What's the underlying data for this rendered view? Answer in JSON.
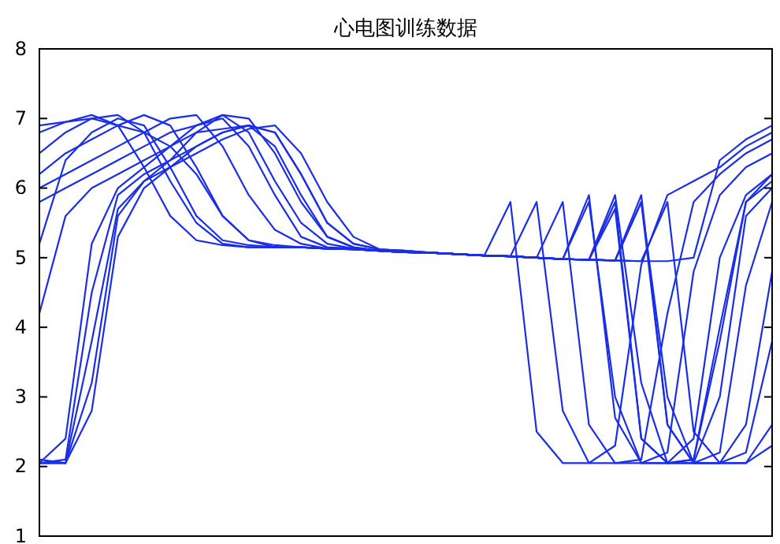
{
  "chart_data": {
    "type": "line",
    "title": "心电图训练数据",
    "categories": [
      null,
      null,
      null,
      null,
      null,
      null,
      null,
      null,
      null,
      null,
      null,
      null,
      null,
      null,
      null,
      null,
      null,
      null,
      null,
      null,
      null,
      null,
      null,
      null,
      null,
      null,
      null,
      null,
      null
    ],
    "ylim": [
      1,
      8
    ],
    "yticks": [
      1,
      2,
      3,
      4,
      5,
      6,
      7,
      8
    ],
    "tick_labels": "y",
    "grid": false,
    "line_style": "solid",
    "marker": "none",
    "series": [
      {
        "color": "#1a2ee8",
        "values": [
          2.05,
          2.1,
          4.5,
          5.9,
          6.2,
          6.4,
          6.6,
          6.8,
          6.9,
          6.6,
          5.9,
          5.3,
          5.15,
          5.1,
          5.08,
          5.07,
          5.05,
          5.03,
          5.02,
          5.0,
          5.8,
          2.6,
          2.05,
          2.05,
          2.2,
          4.8,
          5.9,
          6.3,
          6.5
        ]
      },
      {
        "color": "#1a2ee8",
        "values": [
          2.05,
          2.05,
          3.2,
          5.6,
          6.1,
          6.3,
          6.5,
          6.7,
          6.85,
          6.9,
          6.5,
          5.8,
          5.3,
          5.12,
          5.1,
          5.07,
          5.05,
          5.03,
          5.02,
          5.0,
          4.98,
          4.97,
          5.7,
          2.4,
          2.05,
          2.1,
          3.8,
          5.8,
          6.2
        ]
      },
      {
        "color": "#1a2ee8",
        "values": [
          2.05,
          2.4,
          5.2,
          6.0,
          6.3,
          6.6,
          6.9,
          7.0,
          6.6,
          5.9,
          5.3,
          5.15,
          5.13,
          5.1,
          5.08,
          5.07,
          5.05,
          5.03,
          5.8,
          2.5,
          2.05,
          2.05,
          2.3,
          4.9,
          5.9,
          6.1,
          6.3,
          6.6,
          6.8
        ]
      },
      {
        "color": "#1a2ee8",
        "values": [
          2.05,
          2.05,
          3.8,
          5.7,
          6.1,
          6.4,
          6.8,
          7.05,
          6.8,
          6.1,
          5.5,
          5.2,
          5.13,
          5.1,
          5.08,
          5.07,
          5.05,
          5.03,
          5.02,
          5.0,
          4.98,
          5.8,
          3.0,
          2.05,
          2.05,
          2.1,
          4.0,
          5.8,
          6.1
        ]
      },
      {
        "color": "#1a2ee8",
        "values": [
          2.1,
          2.05,
          2.8,
          5.3,
          6.0,
          6.3,
          6.6,
          6.8,
          6.9,
          6.8,
          6.2,
          5.5,
          5.2,
          5.12,
          5.1,
          5.07,
          5.05,
          5.03,
          5.02,
          5.0,
          4.98,
          4.97,
          4.96,
          5.8,
          2.6,
          2.05,
          2.05,
          2.6,
          4.8
        ]
      },
      {
        "color": "#1a2ee8",
        "values": [
          5.2,
          6.4,
          6.8,
          7.0,
          6.9,
          6.3,
          5.6,
          5.25,
          5.18,
          5.15,
          5.15,
          5.13,
          5.12,
          5.1,
          5.08,
          5.07,
          5.05,
          5.03,
          5.02,
          5.0,
          4.98,
          4.97,
          4.96,
          4.95,
          4.95,
          5.0,
          6.4,
          6.7,
          6.9
        ]
      },
      {
        "color": "#1a2ee8",
        "values": [
          6.9,
          6.95,
          7.05,
          6.9,
          6.3,
          5.6,
          5.25,
          5.18,
          5.15,
          5.15,
          5.15,
          5.13,
          5.12,
          5.1,
          5.08,
          5.07,
          5.05,
          5.03,
          5.02,
          5.8,
          2.8,
          2.05,
          2.05,
          2.1,
          4.2,
          5.8,
          6.2,
          6.5,
          6.7
        ]
      },
      {
        "color": "#1a2ee8",
        "values": [
          6.5,
          6.8,
          7.0,
          7.05,
          6.8,
          6.1,
          5.5,
          5.2,
          5.15,
          5.15,
          5.15,
          5.13,
          5.12,
          5.1,
          5.08,
          5.07,
          5.05,
          5.03,
          5.02,
          5.0,
          4.98,
          5.9,
          2.7,
          2.05,
          2.05,
          2.4,
          5.0,
          5.9,
          6.2
        ]
      },
      {
        "color": "#1a2ee8",
        "values": [
          6.2,
          6.5,
          6.7,
          6.9,
          7.05,
          6.9,
          6.3,
          5.6,
          5.25,
          5.18,
          5.15,
          5.13,
          5.12,
          5.1,
          5.08,
          5.07,
          5.05,
          5.03,
          5.02,
          5.0,
          4.98,
          4.97,
          4.96,
          5.8,
          3.0,
          2.05,
          2.05,
          2.2,
          3.8
        ]
      },
      {
        "color": "#1a2ee8",
        "values": [
          6.0,
          6.2,
          6.4,
          6.6,
          6.8,
          7.0,
          7.05,
          6.6,
          5.9,
          5.4,
          5.2,
          5.13,
          5.12,
          5.1,
          5.08,
          5.07,
          5.05,
          5.03,
          5.02,
          5.0,
          4.98,
          4.97,
          5.8,
          2.4,
          2.05,
          2.05,
          3.0,
          5.6,
          6.0
        ]
      },
      {
        "color": "#1a2ee8",
        "values": [
          5.8,
          6.0,
          6.2,
          6.4,
          6.6,
          6.8,
          6.9,
          7.05,
          7.0,
          6.5,
          5.8,
          5.3,
          5.15,
          5.1,
          5.08,
          5.07,
          5.05,
          5.03,
          5.02,
          5.0,
          4.98,
          4.97,
          4.96,
          4.95,
          5.8,
          2.5,
          2.05,
          2.05,
          2.3
        ]
      },
      {
        "color": "#1a2ee8",
        "values": [
          4.2,
          5.6,
          6.0,
          6.2,
          6.4,
          6.6,
          6.8,
          6.85,
          6.9,
          6.8,
          6.2,
          5.5,
          5.2,
          5.12,
          5.1,
          5.07,
          5.05,
          5.03,
          5.02,
          5.0,
          4.98,
          4.97,
          4.96,
          5.9,
          2.6,
          2.05,
          2.05,
          2.05,
          2.6
        ]
      },
      {
        "color": "#1a2ee8",
        "values": [
          6.8,
          6.95,
          7.0,
          6.9,
          6.8,
          6.6,
          6.2,
          5.6,
          5.25,
          5.15,
          5.15,
          5.13,
          5.12,
          5.1,
          5.08,
          5.07,
          5.05,
          5.03,
          5.02,
          5.0,
          4.98,
          4.97,
          5.9,
          3.2,
          2.05,
          2.05,
          2.2,
          4.6,
          5.8
        ]
      }
    ]
  }
}
